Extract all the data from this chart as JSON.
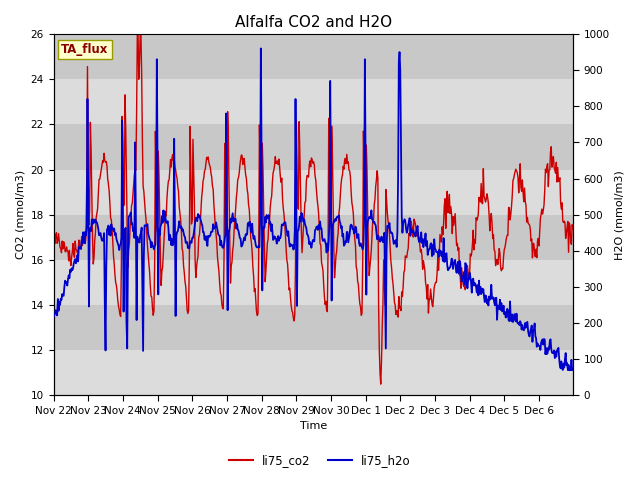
{
  "title": "Alfalfa CO2 and H2O",
  "xlabel": "Time",
  "ylabel_left": "CO2 (mmol/m3)",
  "ylabel_right": "H2O (mmol/m3)",
  "ylim_left": [
    10,
    26
  ],
  "ylim_right": [
    0,
    1000
  ],
  "yticks_left": [
    10,
    12,
    14,
    16,
    18,
    20,
    22,
    24,
    26
  ],
  "yticks_right": [
    0,
    100,
    200,
    300,
    400,
    500,
    600,
    700,
    800,
    900,
    1000
  ],
  "color_co2": "#cc0000",
  "color_h2o": "#0000cc",
  "bg_color_light": "#dcdcdc",
  "bg_color_dark": "#c8c8c8",
  "legend_label_co2": "li75_co2",
  "legend_label_h2o": "li75_h2o",
  "annotation_text": "TA_flux",
  "annotation_bg": "#ffffcc",
  "annotation_border": "#999900",
  "title_fontsize": 11,
  "axis_fontsize": 8,
  "tick_fontsize": 7.5
}
